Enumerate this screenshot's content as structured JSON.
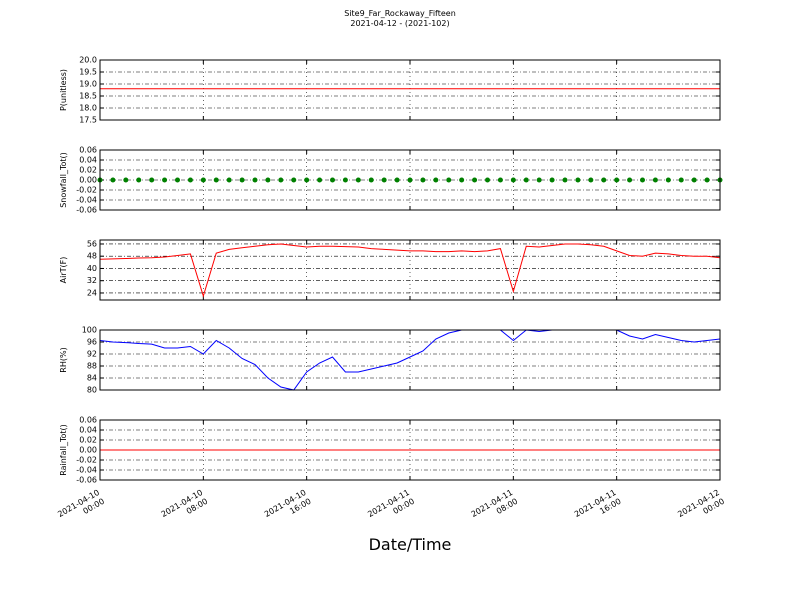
{
  "chart_data": {
    "type": "multi_panel_line",
    "title": "Site9_Far_Rockaway_Fifteen",
    "subtitle": "2021-04-12 - (2021-102)",
    "x_label": "Date/Time",
    "grid": true,
    "x": [
      "2021-04-10 00:00",
      "2021-04-10 01:00",
      "2021-04-10 02:00",
      "2021-04-10 03:00",
      "2021-04-10 04:00",
      "2021-04-10 05:00",
      "2021-04-10 06:00",
      "2021-04-10 07:00",
      "2021-04-10 08:00",
      "2021-04-10 09:00",
      "2021-04-10 10:00",
      "2021-04-10 11:00",
      "2021-04-10 12:00",
      "2021-04-10 13:00",
      "2021-04-10 14:00",
      "2021-04-10 15:00",
      "2021-04-10 16:00",
      "2021-04-10 17:00",
      "2021-04-10 18:00",
      "2021-04-10 19:00",
      "2021-04-10 20:00",
      "2021-04-10 21:00",
      "2021-04-10 22:00",
      "2021-04-10 23:00",
      "2021-04-11 00:00",
      "2021-04-11 01:00",
      "2021-04-11 02:00",
      "2021-04-11 03:00",
      "2021-04-11 04:00",
      "2021-04-11 05:00",
      "2021-04-11 06:00",
      "2021-04-11 07:00",
      "2021-04-11 08:00",
      "2021-04-11 09:00",
      "2021-04-11 10:00",
      "2021-04-11 11:00",
      "2021-04-11 12:00",
      "2021-04-11 13:00",
      "2021-04-11 14:00",
      "2021-04-11 15:00",
      "2021-04-11 16:00",
      "2021-04-11 17:00",
      "2021-04-11 18:00",
      "2021-04-11 19:00",
      "2021-04-11 20:00",
      "2021-04-11 21:00",
      "2021-04-11 22:00",
      "2021-04-11 23:00",
      "2021-04-12 00:00"
    ],
    "xlim": [
      "2021-04-10 00:00",
      "2021-04-12 00:00"
    ],
    "xticks": [
      "2021-04-10 00:00",
      "2021-04-10 08:00",
      "2021-04-10 16:00",
      "2021-04-11 00:00",
      "2021-04-11 08:00",
      "2021-04-11 16:00",
      "2021-04-12 00:00"
    ],
    "panels": [
      {
        "y_label": "P(unitless)",
        "ylim": [
          17.5,
          20
        ],
        "yticks": [
          17.5,
          {
            "value": 18,
            "label": "18.0"
          },
          18.5,
          {
            "value": 19,
            "label": "19.0"
          },
          19.5,
          {
            "value": 20,
            "label": "20.0"
          }
        ],
        "series": [
          {
            "color": "#ff0000",
            "marker": false,
            "values": [
              18.8,
              18.8,
              18.8,
              18.8,
              18.8,
              18.8,
              18.8,
              18.8,
              18.8,
              18.8,
              18.8,
              18.8,
              18.8,
              18.8,
              18.8,
              18.8,
              18.8,
              18.8,
              18.8,
              18.8,
              18.8,
              18.8,
              18.8,
              18.8,
              18.8,
              18.8,
              18.8,
              18.8,
              18.8,
              18.8,
              18.8,
              18.8,
              18.8,
              18.8,
              18.8,
              18.8,
              18.8,
              18.8,
              18.8,
              18.8,
              18.8,
              18.8,
              18.8,
              18.8,
              18.8,
              18.8,
              18.8,
              18.8,
              18.8
            ]
          }
        ]
      },
      {
        "y_label": "Snowfall_Tot()",
        "ylim": [
          -0.06,
          0.06
        ],
        "yticks": [
          -0.06,
          -0.04,
          -0.02,
          {
            "value": 0,
            "label": "0.00"
          },
          0.02,
          0.04,
          0.06
        ],
        "series": [
          {
            "color": "#008000",
            "marker": true,
            "values": [
              0,
              0,
              0,
              0,
              0,
              0,
              0,
              0,
              0,
              0,
              0,
              0,
              0,
              0,
              0,
              0,
              0,
              0,
              0,
              0,
              0,
              0,
              0,
              0,
              0,
              0,
              0,
              0,
              0,
              0,
              0,
              0,
              0,
              0,
              0,
              0,
              0,
              0,
              0,
              0,
              0,
              0,
              0,
              0,
              0,
              0,
              0,
              0,
              0
            ]
          }
        ]
      },
      {
        "y_label": "AirT(F)",
        "ylim": [
          19.4,
          58.6
        ],
        "yticks": [
          24,
          32,
          40,
          48,
          56
        ],
        "series": [
          {
            "color": "#ff0000",
            "marker": false,
            "values": [
              46,
              46.3,
              46.5,
              46.8,
              47,
              47.5,
              48.5,
              49.5,
              22,
              50,
              52.5,
              53.5,
              54.5,
              55.5,
              56,
              55,
              54,
              54.5,
              54.5,
              54.3,
              54,
              53,
              52.5,
              52,
              51.5,
              51.5,
              51,
              51,
              51.5,
              51,
              51.5,
              53,
              25,
              54.5,
              54,
              55,
              56,
              56,
              55.5,
              54.5,
              51.5,
              48.5,
              48,
              50,
              49.5,
              48.5,
              48,
              48,
              47
            ]
          }
        ]
      },
      {
        "y_label": "RH(%)",
        "ylim": [
          80,
          100
        ],
        "yticks": [
          80,
          84,
          88,
          92,
          96,
          100
        ],
        "series": [
          {
            "color": "#0000ff",
            "marker": false,
            "values": [
              96.5,
              96,
              95.8,
              95.5,
              95.3,
              94,
              94,
              94.5,
              92,
              96.5,
              94,
              90.5,
              88.5,
              84,
              81,
              80,
              86,
              89,
              91,
              86,
              86,
              87,
              88,
              89,
              91,
              93,
              97,
              99,
              100,
              100,
              100,
              100,
              96.5,
              100,
              99.5,
              100,
              100,
              100,
              100,
              100,
              100,
              98,
              97,
              98.5,
              97.5,
              96.5,
              96,
              96.5,
              97
            ]
          }
        ]
      },
      {
        "y_label": "Rainfall_Tot()",
        "ylim": [
          -0.06,
          0.06
        ],
        "yticks": [
          -0.06,
          -0.04,
          -0.02,
          {
            "value": 0,
            "label": "0.00"
          },
          0.02,
          0.04,
          0.06
        ],
        "series": [
          {
            "color": "#ff0000",
            "marker": false,
            "values": [
              0,
              0,
              0,
              0,
              0,
              0,
              0,
              0,
              0,
              0,
              0,
              0,
              0,
              0,
              0,
              0,
              0,
              0,
              0,
              0,
              0,
              0,
              0,
              0,
              0,
              0,
              0,
              0,
              0,
              0,
              0,
              0,
              0,
              0,
              0,
              0,
              0,
              0,
              0,
              0,
              0,
              0,
              0,
              0,
              0,
              0,
              0,
              0,
              0
            ]
          }
        ]
      }
    ]
  }
}
